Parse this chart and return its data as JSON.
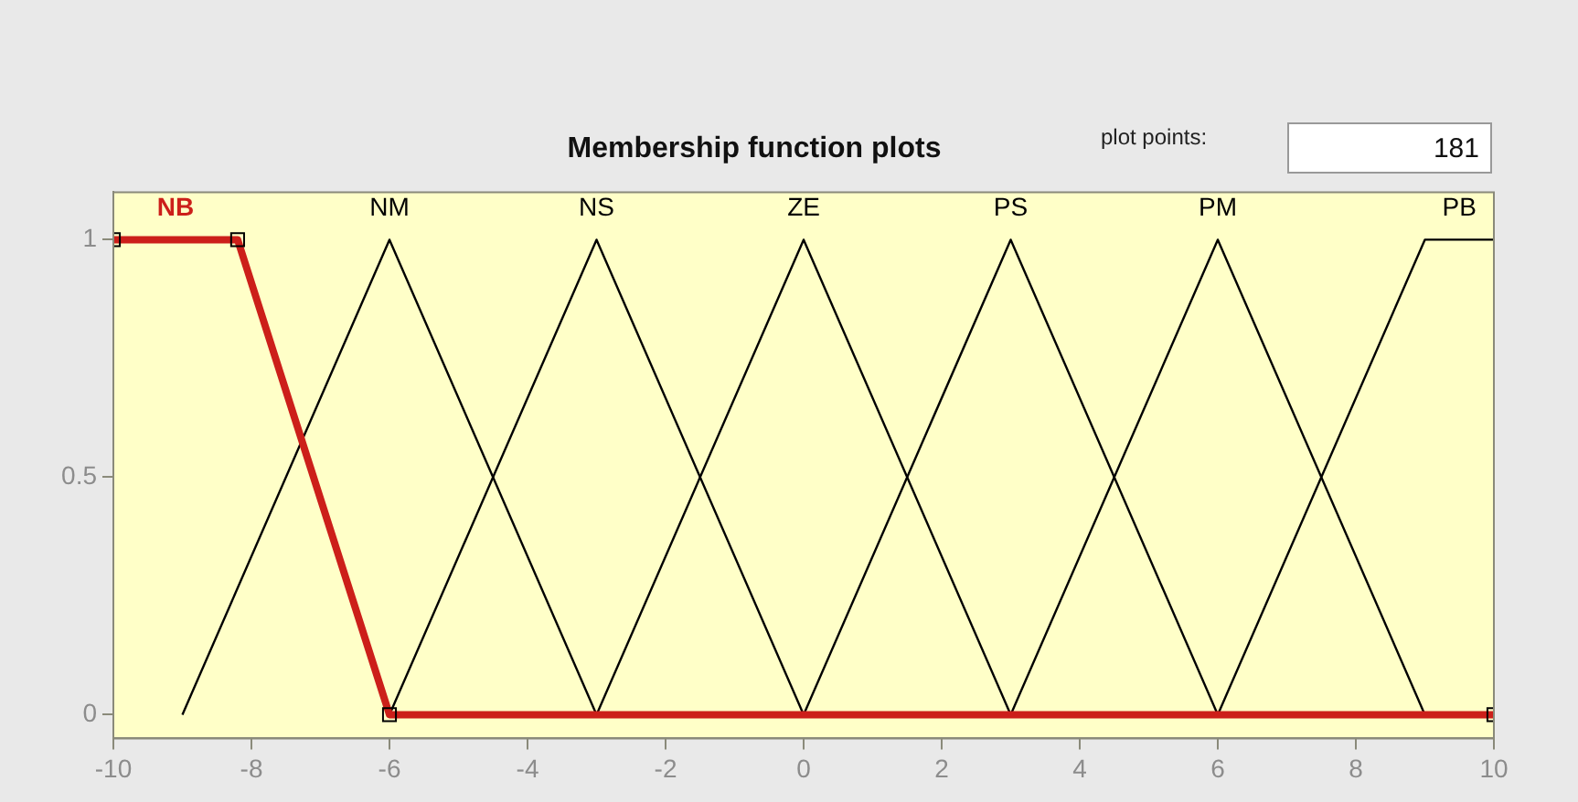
{
  "chart_data": {
    "type": "line",
    "title": "Membership function plots",
    "annotations": [
      "plot points:",
      "181"
    ],
    "xlim": [
      -10,
      10
    ],
    "xticks": [
      -10,
      -8,
      -6,
      -4,
      -2,
      0,
      2,
      4,
      6,
      8,
      10
    ],
    "ylim": [
      -0.05,
      1.1
    ],
    "yticks": [
      0,
      0.5,
      1
    ],
    "grid": false,
    "legend": false,
    "series": [
      {
        "name": "NB",
        "color": "#cc1f1a",
        "x": [
          -10,
          -8.2,
          -6,
          10
        ],
        "values": [
          1,
          1,
          0,
          0
        ],
        "marker": "square"
      },
      {
        "name": "NM",
        "color": "#000000",
        "x": [
          -9,
          -6,
          -3
        ],
        "values": [
          0,
          1,
          0
        ]
      },
      {
        "name": "NS",
        "color": "#000000",
        "x": [
          -6,
          -3,
          0
        ],
        "values": [
          0,
          1,
          0
        ]
      },
      {
        "name": "ZE",
        "color": "#000000",
        "x": [
          -3,
          0,
          3
        ],
        "values": [
          0,
          1,
          0
        ]
      },
      {
        "name": "PS",
        "color": "#000000",
        "x": [
          0,
          3,
          6
        ],
        "values": [
          0,
          1,
          0
        ]
      },
      {
        "name": "PM",
        "color": "#000000",
        "x": [
          3,
          6,
          9
        ],
        "values": [
          0,
          1,
          0
        ]
      },
      {
        "name": "PB",
        "color": "#000000",
        "x": [
          6,
          9,
          10
        ],
        "values": [
          0,
          1,
          1
        ]
      }
    ]
  }
}
